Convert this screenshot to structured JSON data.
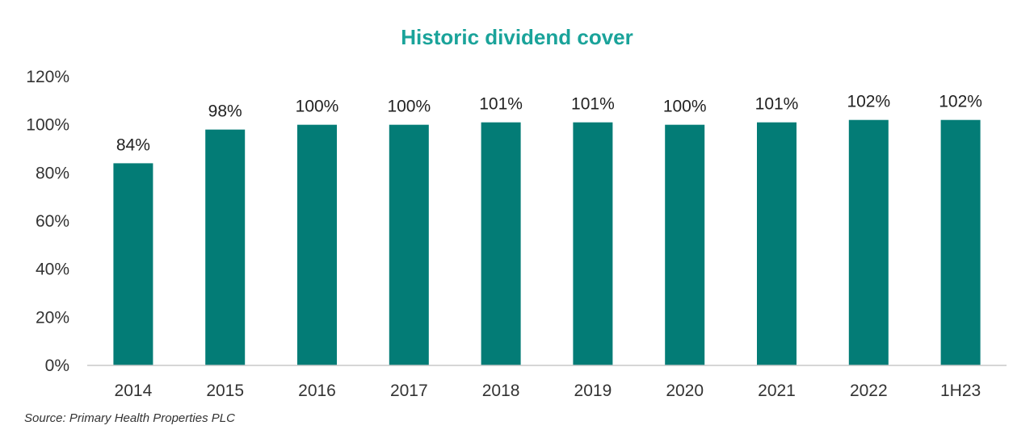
{
  "colors": {
    "title": "#1aa39a",
    "bar": "#037c76",
    "axis": "#c8c8c8",
    "text": "#333333"
  },
  "chart_data": {
    "type": "bar",
    "title": "Historic dividend cover",
    "categories": [
      "2014",
      "2015",
      "2016",
      "2017",
      "2018",
      "2019",
      "2020",
      "2021",
      "2022",
      "1H23"
    ],
    "values": [
      84,
      98,
      100,
      100,
      101,
      101,
      100,
      101,
      102,
      102
    ],
    "data_labels": [
      "84%",
      "98%",
      "100%",
      "100%",
      "101%",
      "101%",
      "100%",
      "101%",
      "102%",
      "102%"
    ],
    "y_ticks": [
      "0%",
      "20%",
      "40%",
      "60%",
      "80%",
      "100%",
      "120%"
    ],
    "ylim": [
      0,
      120
    ],
    "xlabel": "",
    "ylabel": "",
    "grid": false,
    "legend": "none",
    "source": "Source: Primary Health Properties PLC"
  }
}
